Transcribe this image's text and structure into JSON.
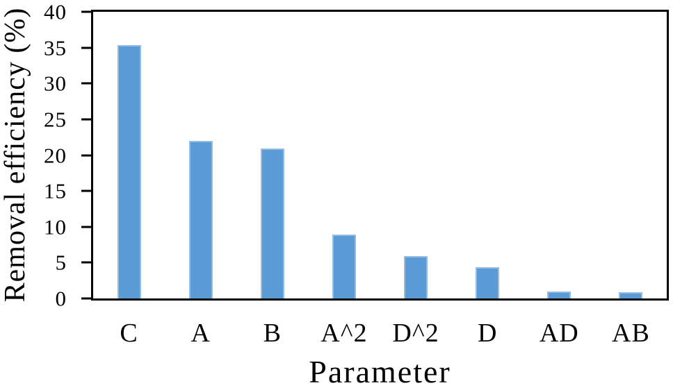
{
  "chart_data": {
    "type": "bar",
    "title": "",
    "xlabel": "Parameter",
    "ylabel": "Removal efficiency (%)",
    "categories": [
      "C",
      "A",
      "B",
      "A^2",
      "D^2",
      "D",
      "AD",
      "AB"
    ],
    "values": [
      35.4,
      22,
      20.9,
      8.9,
      5.9,
      4.4,
      1.0,
      0.9
    ],
    "ylim": [
      0,
      40
    ],
    "yticks": [
      0,
      5,
      10,
      15,
      20,
      25,
      30,
      35,
      40
    ],
    "grid": false,
    "legend_position": "none",
    "bar_color": "#5b9bd5",
    "bar_border_color": "#93bde4",
    "axis_color": "#000000",
    "background_color": "#ffffff"
  }
}
